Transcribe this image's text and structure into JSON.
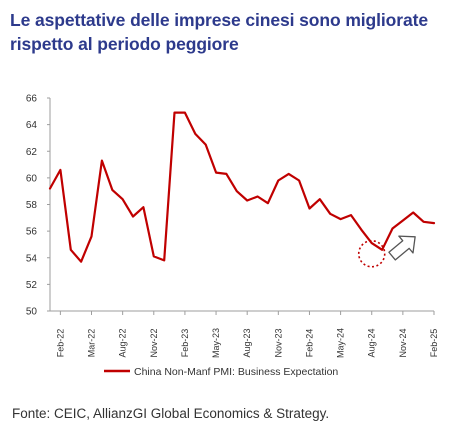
{
  "title_lines": [
    "Le aspettative delle imprese cinesi sono migliorate",
    "rispetto al periodo peggiore"
  ],
  "source": "Fonte: CEIC, AllianzGI Global Economics & Strategy.",
  "colors": {
    "title": "#2d3a8c",
    "series": "#c00000",
    "axis": "#9e9e9e",
    "text": "#333333",
    "arrow_fill": "#ffffff",
    "arrow_stroke": "#555555"
  },
  "chart_data": {
    "type": "line",
    "ylim": [
      50,
      66
    ],
    "y_ticks": [
      "50",
      "52",
      "54",
      "56",
      "58",
      "60",
      "62",
      "64",
      "66"
    ],
    "x_tick_labels": [
      "Feb-22",
      "Mar-22",
      "Aug-22",
      "Nov-22",
      "Feb-23",
      "May-23",
      "Aug-23",
      "Nov-23",
      "Feb-24",
      "May-24",
      "Aug-24",
      "Nov-24",
      "Feb-25"
    ],
    "x_start": "2022-01",
    "x_end": "2025-02",
    "grid": false,
    "legend_position": "bottom",
    "series": [
      {
        "name": "China Non-Manf PMI: Business Expectation",
        "color": "#c00000",
        "x": [
          "2022-01",
          "2022-02",
          "2022-03",
          "2022-04",
          "2022-05",
          "2022-06",
          "2022-07",
          "2022-08",
          "2022-09",
          "2022-10",
          "2022-11",
          "2022-12",
          "2023-01",
          "2023-02",
          "2023-03",
          "2023-04",
          "2023-05",
          "2023-06",
          "2023-07",
          "2023-08",
          "2023-09",
          "2023-10",
          "2023-11",
          "2023-12",
          "2024-01",
          "2024-02",
          "2024-03",
          "2024-04",
          "2024-05",
          "2024-06",
          "2024-07",
          "2024-08",
          "2024-09",
          "2024-10",
          "2024-11",
          "2024-12",
          "2025-01",
          "2025-02"
        ],
        "values": [
          59.2,
          60.6,
          54.6,
          53.7,
          55.6,
          61.3,
          59.1,
          58.4,
          57.1,
          57.8,
          54.1,
          53.8,
          64.9,
          64.9,
          63.3,
          62.5,
          60.4,
          60.3,
          59.0,
          58.3,
          58.6,
          58.1,
          59.8,
          60.3,
          59.8,
          57.7,
          58.4,
          57.3,
          56.9,
          57.2,
          56.1,
          55.1,
          54.6,
          56.2,
          56.8,
          57.4,
          56.7,
          56.6
        ]
      }
    ],
    "annotations": [
      {
        "type": "dotted-circle",
        "x": "2024-08",
        "y": 54.3
      },
      {
        "type": "up-right-arrow",
        "x": "2024-11",
        "y": 54.8
      }
    ]
  }
}
